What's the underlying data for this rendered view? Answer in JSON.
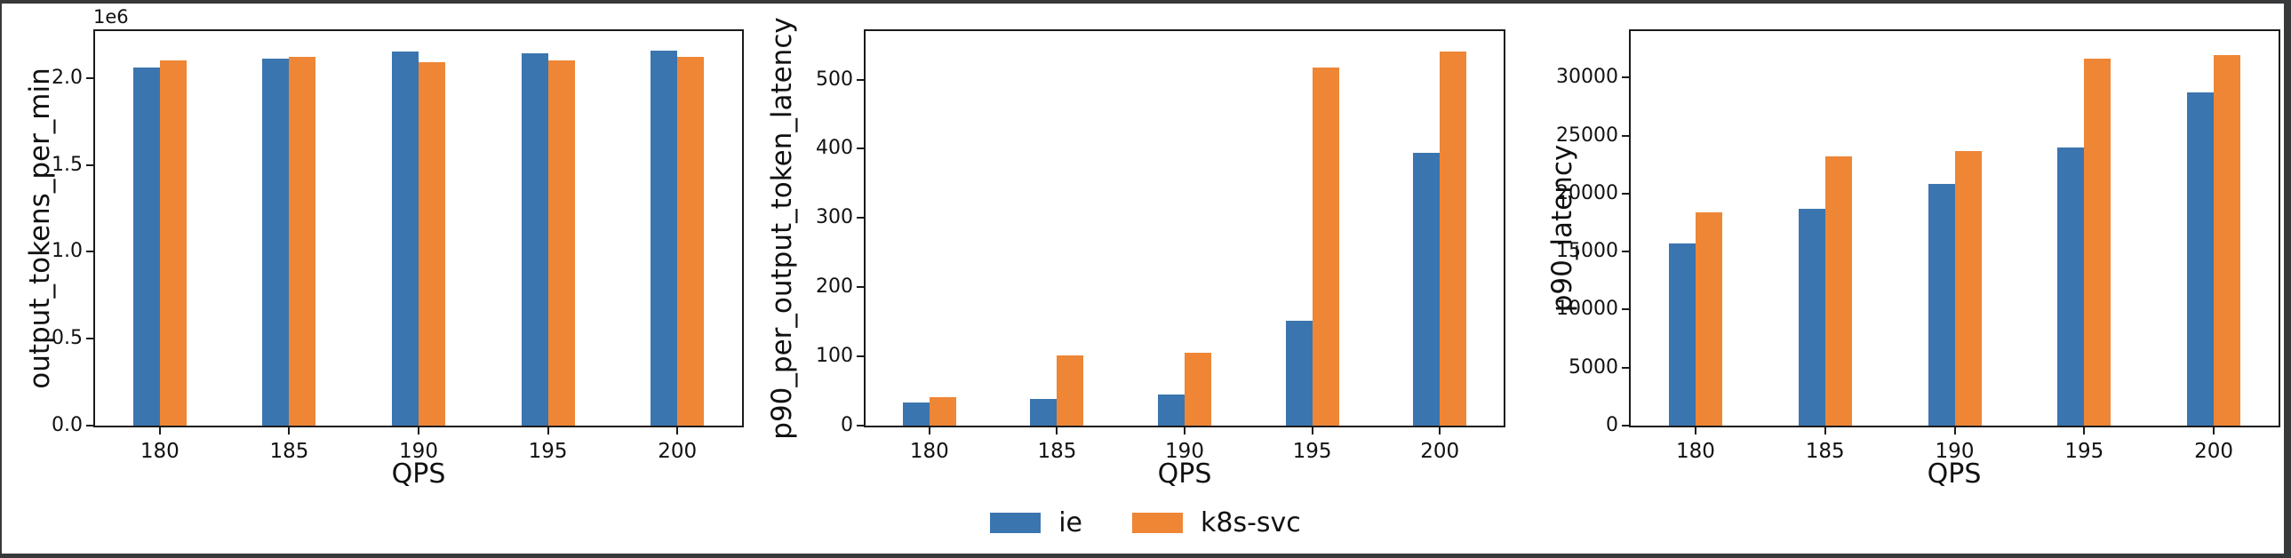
{
  "figure": {
    "background": "#ffffff",
    "frame_color": "#38393b",
    "axis_color": "#1a1a1a"
  },
  "legend": {
    "position": "bottom-center",
    "entries": [
      {
        "label": "ie",
        "color": "#3B75AF"
      },
      {
        "label": "k8s-svc",
        "color": "#EE8636"
      }
    ]
  },
  "chart_data": [
    {
      "type": "bar",
      "title": "",
      "xlabel": "QPS",
      "ylabel": "output_tokens_per_min",
      "y_offset_label": "1e6",
      "categories": [
        "180",
        "185",
        "190",
        "195",
        "200"
      ],
      "series": [
        {
          "name": "ie",
          "color": "#3B75AF",
          "values": [
            2060000,
            2110000,
            2150000,
            2140000,
            2160000
          ]
        },
        {
          "name": "k8s-svc",
          "color": "#EE8636",
          "values": [
            2100000,
            2120000,
            2090000,
            2100000,
            2120000
          ]
        }
      ],
      "ylim": [
        0,
        2270000
      ],
      "yticks": [
        {
          "value": 0,
          "label": "0.0"
        },
        {
          "value": 500000,
          "label": "0.5"
        },
        {
          "value": 1000000,
          "label": "1.0"
        },
        {
          "value": 1500000,
          "label": "1.5"
        },
        {
          "value": 2000000,
          "label": "2.0"
        }
      ],
      "grid": false,
      "legend_position": "none"
    },
    {
      "type": "bar",
      "title": "",
      "xlabel": "QPS",
      "ylabel": "p90_per_output_token_latency",
      "y_offset_label": "",
      "categories": [
        "180",
        "185",
        "190",
        "195",
        "200"
      ],
      "series": [
        {
          "name": "ie",
          "color": "#3B75AF",
          "values": [
            34,
            39,
            45,
            152,
            394
          ]
        },
        {
          "name": "k8s-svc",
          "color": "#EE8636",
          "values": [
            41,
            101,
            105,
            518,
            541
          ]
        }
      ],
      "ylim": [
        0,
        570
      ],
      "yticks": [
        {
          "value": 0,
          "label": "0"
        },
        {
          "value": 100,
          "label": "100"
        },
        {
          "value": 200,
          "label": "200"
        },
        {
          "value": 300,
          "label": "300"
        },
        {
          "value": 400,
          "label": "400"
        },
        {
          "value": 500,
          "label": "500"
        }
      ],
      "grid": false,
      "legend_position": "none"
    },
    {
      "type": "bar",
      "title": "",
      "xlabel": "QPS",
      "ylabel": "p90_latency",
      "y_offset_label": "",
      "categories": [
        "180",
        "185",
        "190",
        "195",
        "200"
      ],
      "series": [
        {
          "name": "ie",
          "color": "#3B75AF",
          "values": [
            15700,
            18700,
            20800,
            24000,
            28700
          ]
        },
        {
          "name": "k8s-svc",
          "color": "#EE8636",
          "values": [
            18400,
            23200,
            23700,
            31600,
            31900
          ]
        }
      ],
      "ylim": [
        0,
        34000
      ],
      "yticks": [
        {
          "value": 0,
          "label": "0"
        },
        {
          "value": 5000,
          "label": "5000"
        },
        {
          "value": 10000,
          "label": "10000"
        },
        {
          "value": 15000,
          "label": "15000"
        },
        {
          "value": 20000,
          "label": "20000"
        },
        {
          "value": 25000,
          "label": "25000"
        },
        {
          "value": 30000,
          "label": "30000"
        }
      ],
      "grid": false,
      "legend_position": "none"
    }
  ]
}
